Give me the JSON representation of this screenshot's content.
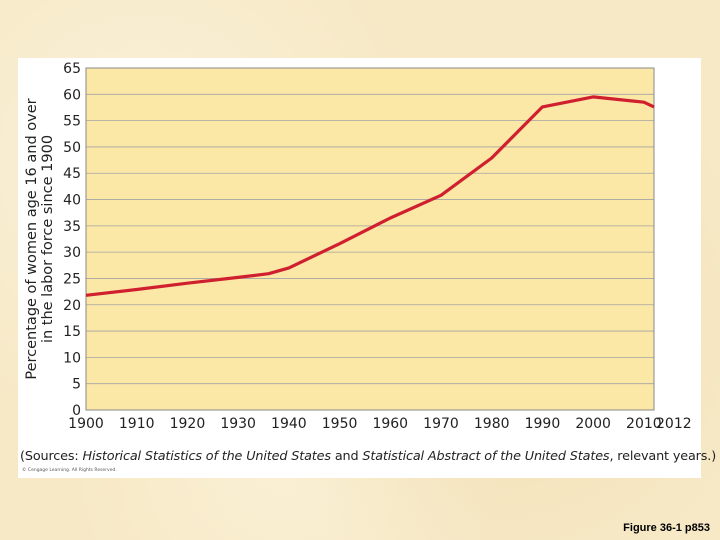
{
  "chart_data": {
    "type": "line",
    "title": "",
    "ylabel_lines": [
      "Percentage of women age 16 and over",
      "in the labor force since 1900"
    ],
    "xlabel": "",
    "xlim": [
      1900,
      2012
    ],
    "ylim": [
      0,
      65
    ],
    "x_ticks": [
      1900,
      1910,
      1920,
      1930,
      1940,
      1950,
      1960,
      1970,
      1980,
      1990,
      2000,
      2010,
      2012
    ],
    "y_ticks": [
      0,
      5,
      10,
      15,
      20,
      25,
      30,
      35,
      40,
      45,
      50,
      55,
      60,
      65
    ],
    "grid": true,
    "series": [
      {
        "color": "#d0202f",
        "x": [
          1900,
          1910,
          1920,
          1930,
          1936,
          1940,
          1950,
          1960,
          1970,
          1980,
          1990,
          2000,
          2010,
          2012
        ],
        "y": [
          21.8,
          22.9,
          24.1,
          25.2,
          25.9,
          27.0,
          31.6,
          36.5,
          40.8,
          47.9,
          57.6,
          59.5,
          58.5,
          57.6
        ]
      }
    ],
    "plot_background": "#fbe7a6",
    "axis_color": "#888888"
  },
  "source": {
    "prefix": "(Sources: ",
    "title1": "Historical Statistics of the United States",
    "middle": " and ",
    "title2": "Statistical Abstract of the United States",
    "suffix": ", relevant years.)"
  },
  "copyright": "© Cengage Learning. All Rights Reserved.",
  "figure_ref": "Figure 36-1 p853"
}
